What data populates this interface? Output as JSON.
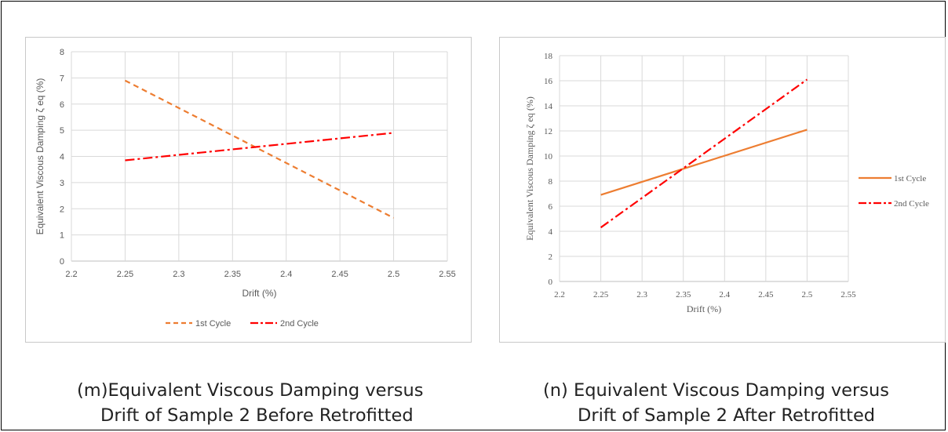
{
  "chart_data": [
    {
      "id": "m",
      "type": "line",
      "title": "",
      "xlabel": "Drift (%)",
      "ylabel": "Equivalent Viscous Damping ζ eq (%)",
      "xlim": [
        2.2,
        2.55
      ],
      "ylim": [
        0,
        8
      ],
      "xticks": [
        "2.2",
        "2.25",
        "2.3",
        "2.35",
        "2.4",
        "2.45",
        "2.5",
        "2.55"
      ],
      "yticks": [
        "0",
        "1",
        "2",
        "3",
        "4",
        "5",
        "6",
        "7",
        "8"
      ],
      "grid": true,
      "legend_position": "bottom",
      "series": [
        {
          "name": "1st Cycle",
          "color": "#ED7D31",
          "dash": "dashed",
          "x": [
            2.25,
            2.5
          ],
          "y": [
            6.9,
            1.65
          ]
        },
        {
          "name": "2nd Cycle",
          "color": "#FF0000",
          "dash": "dash-dot",
          "x": [
            2.25,
            2.5
          ],
          "y": [
            3.85,
            4.9
          ]
        }
      ]
    },
    {
      "id": "n",
      "type": "line",
      "title": "",
      "xlabel": "Drift (%)",
      "ylabel": "Equivalent Viscous Damping ζ eq (%)",
      "xlim": [
        2.2,
        2.55
      ],
      "ylim": [
        0,
        18
      ],
      "xticks": [
        "2.2",
        "2.25",
        "2.3",
        "2.35",
        "2.4",
        "2.45",
        "2.5",
        "2.55"
      ],
      "yticks": [
        "0",
        "2",
        "4",
        "6",
        "8",
        "10",
        "12",
        "14",
        "16",
        "18"
      ],
      "grid": true,
      "legend_position": "right",
      "series": [
        {
          "name": "1st Cycle",
          "color": "#ED7D31",
          "dash": "solid",
          "x": [
            2.25,
            2.5
          ],
          "y": [
            6.9,
            12.1
          ]
        },
        {
          "name": "2nd Cycle",
          "color": "#FF0000",
          "dash": "dash-dot",
          "x": [
            2.25,
            2.5
          ],
          "y": [
            4.3,
            16.1
          ]
        }
      ]
    }
  ],
  "captions": {
    "m": {
      "label": "(m)",
      "line1": "Equivalent Viscous Damping versus",
      "line2": "Drift of Sample 2 Before Retrofitted"
    },
    "n": {
      "label": "(n)",
      "line1": " Equivalent Viscous Damping versus",
      "line2": "Drift of Sample 2 After Retrofitted"
    }
  }
}
